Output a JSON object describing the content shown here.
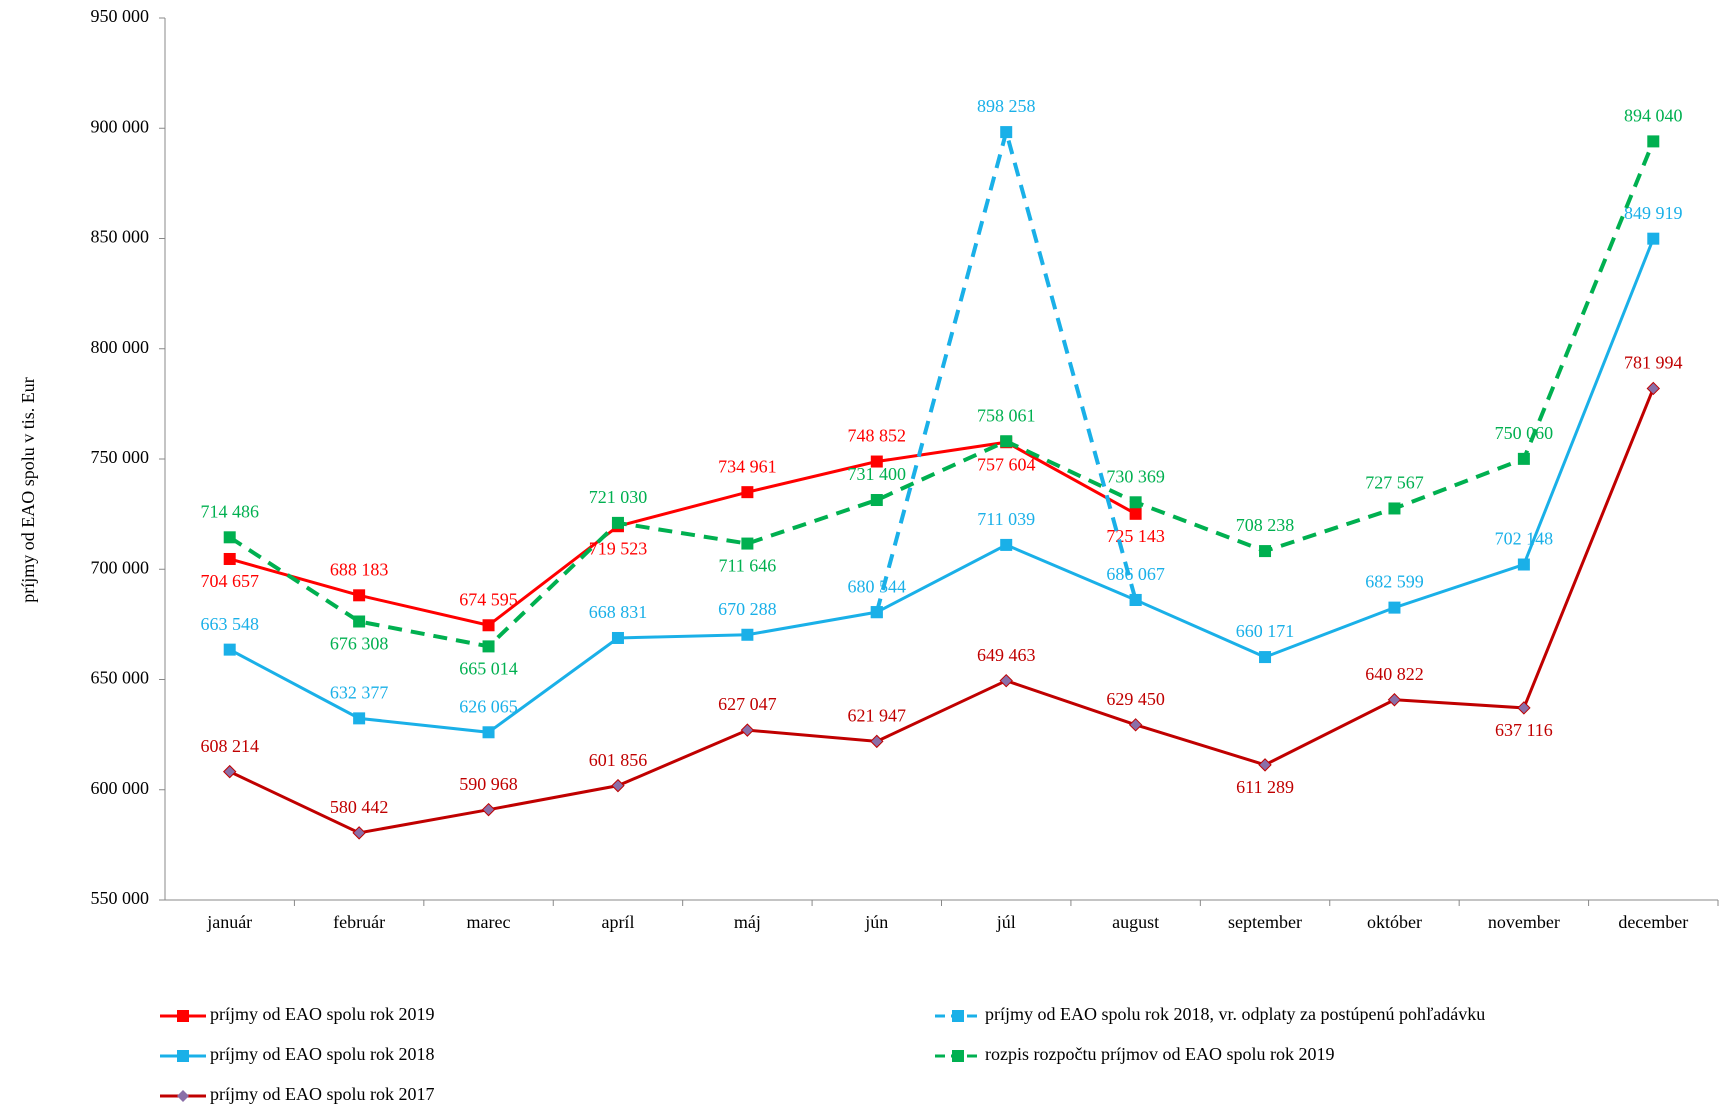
{
  "chart_data": {
    "type": "line",
    "y_label": "príjmy od EAO spolu v tis. Eur",
    "categories": [
      "január",
      "február",
      "marec",
      "apríl",
      "máj",
      "jún",
      "júl",
      "august",
      "september",
      "október",
      "november",
      "december"
    ],
    "ylim": [
      550000,
      950000
    ],
    "yticks": [
      {
        "value": 550000,
        "label": "550 000"
      },
      {
        "value": 600000,
        "label": "600 000"
      },
      {
        "value": 650000,
        "label": "650 000"
      },
      {
        "value": 700000,
        "label": "700 000"
      },
      {
        "value": 750000,
        "label": "750 000"
      },
      {
        "value": 800000,
        "label": "800 000"
      },
      {
        "value": 850000,
        "label": "850 000"
      },
      {
        "value": 900000,
        "label": "900 000"
      },
      {
        "value": 950000,
        "label": "950 000"
      }
    ],
    "series": [
      {
        "name": "príjmy od EAO spolu rok 2019",
        "color": "#ff0000",
        "marker": "square",
        "marker_color": "#ff0000",
        "dashed": false,
        "values": [
          704657,
          688183,
          674595,
          719523,
          734961,
          748852,
          757604,
          725143,
          null,
          null,
          null,
          null
        ],
        "value_labels": [
          "704 657",
          "688 183",
          "674 595",
          "719 523",
          "734 961",
          "748 852",
          "757 604",
          "725 143",
          null,
          null,
          null,
          null
        ]
      },
      {
        "name": "príjmy od EAO spolu rok 2018, vr. odplaty za postúpenú pohľadávku",
        "color": "#1ab0e8",
        "marker": "square",
        "marker_color": "#1ab0e8",
        "dashed": true,
        "values": [
          null,
          null,
          null,
          null,
          null,
          680544,
          898258,
          686067,
          null,
          null,
          null,
          null
        ],
        "value_labels": [
          null,
          null,
          null,
          null,
          null,
          null,
          "898 258",
          null,
          null,
          null,
          null,
          null
        ]
      },
      {
        "name": "príjmy od EAO spolu rok 2018",
        "color": "#1ab0e8",
        "marker": "square",
        "marker_color": "#1ab0e8",
        "dashed": false,
        "values": [
          663548,
          632377,
          626065,
          668831,
          670288,
          680544,
          711039,
          686067,
          660171,
          682599,
          702148,
          849919
        ],
        "value_labels": [
          "663 548",
          "632 377",
          "626 065",
          "668 831",
          "670 288",
          "680 544",
          "711 039",
          "686 067",
          "660 171",
          "682 599",
          "702 148",
          "849 919"
        ]
      },
      {
        "name": "rozpis rozpočtu príjmov od EAO spolu rok 2019",
        "color": "#00b050",
        "marker": "square",
        "marker_color": "#00b050",
        "dashed": true,
        "values": [
          714486,
          676308,
          665014,
          721030,
          711646,
          731400,
          758061,
          730369,
          708238,
          727567,
          750060,
          894040
        ],
        "value_labels": [
          "714 486",
          "676 308",
          "665 014",
          "721 030",
          "711 646",
          "731 400",
          "758 061",
          "730 369",
          "708 238",
          "727 567",
          "750 060",
          "894 040"
        ]
      },
      {
        "name": "príjmy od EAO spolu rok 2017",
        "color": "#c00000",
        "marker": "diamond",
        "marker_color": "#8a6fa8",
        "dashed": false,
        "values": [
          608214,
          580442,
          590968,
          601856,
          627047,
          621947,
          649463,
          629450,
          611289,
          640822,
          637116,
          781994
        ],
        "value_labels": [
          "608 214",
          "580 442",
          "590 968",
          "601 856",
          "627 047",
          "621 947",
          "649 463",
          "629 450",
          "611 289",
          "640 822",
          "637 116",
          "781 994"
        ]
      }
    ]
  }
}
